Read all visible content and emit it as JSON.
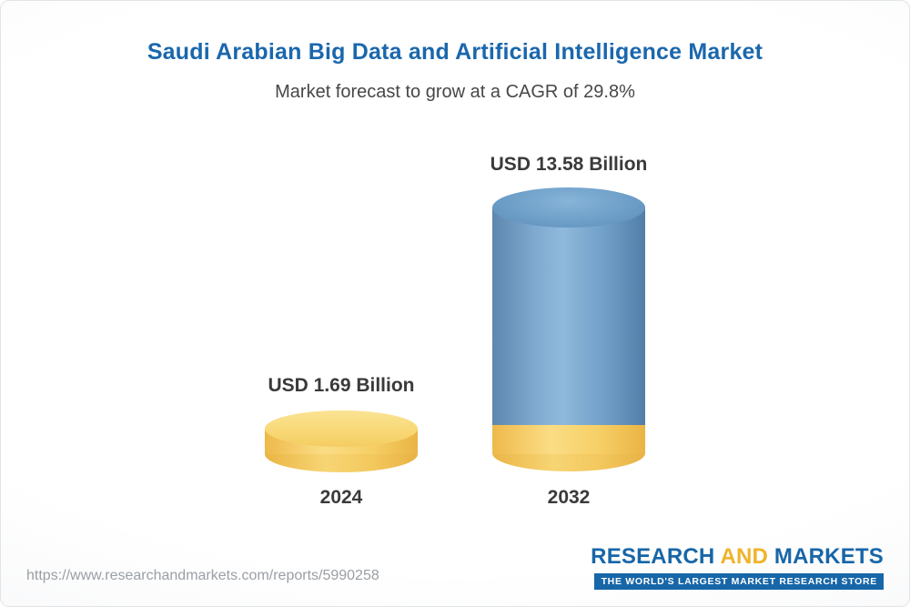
{
  "header": {
    "title": "Saudi Arabian Big Data and Artificial Intelligence Market",
    "subtitle": "Market forecast to grow at a CAGR of 29.8%"
  },
  "chart_data": {
    "type": "bar",
    "title": "Saudi Arabian Big Data and Artificial Intelligence Market",
    "subtitle": "Market forecast to grow at a CAGR of 29.8%",
    "unit": "USD Billion",
    "cagr_percent": 29.8,
    "categories": [
      "2024",
      "2032"
    ],
    "values": [
      1.69,
      13.58
    ],
    "value_labels": [
      "USD 1.69 Billion",
      "USD 13.58 Billion"
    ],
    "legend": "none",
    "grid": false,
    "colors": {
      "bar_2024": "#f6cf66",
      "bar_2032": "#6d9cc5",
      "bar_2032_base": "#f6cf66",
      "title_text": "#1a67ad",
      "label_text": "#3a3a3a"
    }
  },
  "footer": {
    "url": "https://www.researchandmarkets.com/reports/5990258",
    "logo": {
      "word1": "RESEARCH",
      "word2": "AND",
      "word3": "MARKETS",
      "tagline": "THE WORLD'S LARGEST MARKET RESEARCH STORE"
    }
  }
}
